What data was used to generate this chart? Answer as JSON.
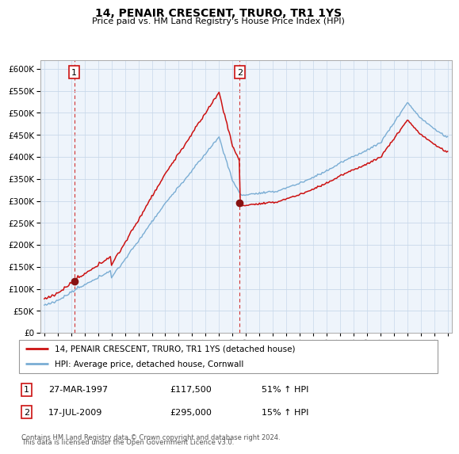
{
  "title": "14, PENAIR CRESCENT, TRURO, TR1 1YS",
  "subtitle": "Price paid vs. HM Land Registry's House Price Index (HPI)",
  "legend_line1": "14, PENAIR CRESCENT, TRURO, TR1 1YS (detached house)",
  "legend_line2": "HPI: Average price, detached house, Cornwall",
  "sale1_label": "1",
  "sale1_date": "27-MAR-1997",
  "sale1_price": 117500,
  "sale1_hpi": "51% ↑ HPI",
  "sale2_label": "2",
  "sale2_date": "17-JUL-2009",
  "sale2_price": 295000,
  "sale2_hpi": "15% ↑ HPI",
  "sale1_year": 1997.23,
  "sale2_year": 2009.54,
  "footer": "Contains HM Land Registry data © Crown copyright and database right 2024.\nThis data is licensed under the Open Government Licence v3.0.",
  "hpi_color": "#7aadd4",
  "price_color": "#cc1111",
  "sale_marker_color": "#881111",
  "vline_color": "#cc1111",
  "ylim": [
    0,
    620000
  ],
  "yticks": [
    0,
    50000,
    100000,
    150000,
    200000,
    250000,
    300000,
    350000,
    400000,
    450000,
    500000,
    550000,
    600000
  ],
  "background_color": "#eef4fb",
  "grid_color": "#c8d8ea"
}
